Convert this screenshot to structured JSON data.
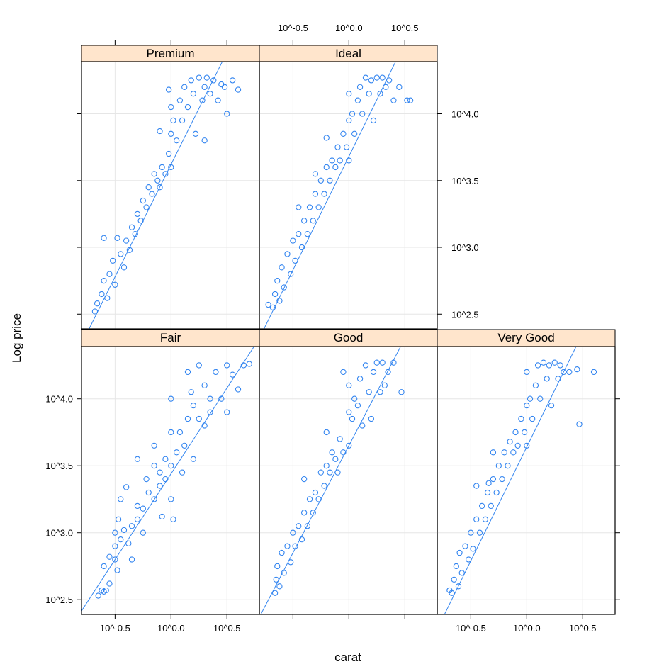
{
  "chart_data": {
    "type": "scatter",
    "xlabel": "carat",
    "ylabel": "Log price",
    "xscale": "log10",
    "yscale": "log10",
    "xlim": [
      -0.8,
      0.79
    ],
    "ylim": [
      2.39,
      4.39
    ],
    "x_ticks": [
      -0.5,
      0.0,
      0.5
    ],
    "x_tick_labels": [
      "10^-0.5",
      "10^0.0",
      "10^0.5"
    ],
    "y_ticks": [
      2.5,
      3.0,
      3.5,
      4.0
    ],
    "y_tick_labels": [
      "10^2.5",
      "10^3.0",
      "10^3.5",
      "10^4.0"
    ],
    "grid": true,
    "colors": {
      "points": "#3385f0",
      "line": "#3385f0",
      "strip": "#ffe5cc",
      "grid": "#e6e6e6"
    },
    "panels": [
      {
        "name": "Premium",
        "fit_line": {
          "intercept": 3.62,
          "slope": 1.68
        },
        "points": [
          [
            -0.68,
            2.52
          ],
          [
            -0.66,
            2.58
          ],
          [
            -0.62,
            2.65
          ],
          [
            -0.6,
            2.75
          ],
          [
            -0.57,
            2.62
          ],
          [
            -0.55,
            2.8
          ],
          [
            -0.52,
            2.9
          ],
          [
            -0.5,
            2.72
          ],
          [
            -0.48,
            3.07
          ],
          [
            -0.45,
            2.95
          ],
          [
            -0.42,
            2.85
          ],
          [
            -0.4,
            3.05
          ],
          [
            -0.37,
            2.98
          ],
          [
            -0.35,
            3.15
          ],
          [
            -0.32,
            3.1
          ],
          [
            -0.3,
            3.25
          ],
          [
            -0.27,
            3.2
          ],
          [
            -0.25,
            3.35
          ],
          [
            -0.22,
            3.3
          ],
          [
            -0.2,
            3.45
          ],
          [
            -0.17,
            3.4
          ],
          [
            -0.15,
            3.55
          ],
          [
            -0.12,
            3.5
          ],
          [
            -0.1,
            3.45
          ],
          [
            -0.08,
            3.6
          ],
          [
            -0.05,
            3.55
          ],
          [
            -0.02,
            3.7
          ],
          [
            0,
            3.6
          ],
          [
            0,
            3.85
          ],
          [
            0,
            4.05
          ],
          [
            0.02,
            3.95
          ],
          [
            0.05,
            3.8
          ],
          [
            0.08,
            4.1
          ],
          [
            0.1,
            3.95
          ],
          [
            0.12,
            4.2
          ],
          [
            0.15,
            4.05
          ],
          [
            0.18,
            4.25
          ],
          [
            0.2,
            4.15
          ],
          [
            0.22,
            3.85
          ],
          [
            0.25,
            4.27
          ],
          [
            0.28,
            4.1
          ],
          [
            0.3,
            4.2
          ],
          [
            0.3,
            3.8
          ],
          [
            0.32,
            4.27
          ],
          [
            0.35,
            4.15
          ],
          [
            0.38,
            4.25
          ],
          [
            0.42,
            4.1
          ],
          [
            0.45,
            4.22
          ],
          [
            0.48,
            4.2
          ],
          [
            0.5,
            4.0
          ],
          [
            0.6,
            4.18
          ],
          [
            0.55,
            4.25
          ],
          [
            -0.1,
            3.87
          ],
          [
            -0.02,
            4.18
          ],
          [
            -0.6,
            3.07
          ]
        ]
      },
      {
        "name": "Ideal",
        "fit_line": {
          "intercept": 3.68,
          "slope": 1.7
        },
        "points": [
          [
            -0.72,
            2.57
          ],
          [
            -0.68,
            2.55
          ],
          [
            -0.66,
            2.65
          ],
          [
            -0.64,
            2.75
          ],
          [
            -0.62,
            2.6
          ],
          [
            -0.6,
            2.85
          ],
          [
            -0.58,
            2.7
          ],
          [
            -0.55,
            2.95
          ],
          [
            -0.52,
            2.8
          ],
          [
            -0.5,
            3.05
          ],
          [
            -0.48,
            2.9
          ],
          [
            -0.45,
            3.1
          ],
          [
            -0.42,
            3.0
          ],
          [
            -0.4,
            3.2
          ],
          [
            -0.37,
            3.1
          ],
          [
            -0.35,
            3.3
          ],
          [
            -0.32,
            3.2
          ],
          [
            -0.3,
            3.4
          ],
          [
            -0.27,
            3.3
          ],
          [
            -0.25,
            3.5
          ],
          [
            -0.22,
            3.4
          ],
          [
            -0.2,
            3.6
          ],
          [
            -0.17,
            3.5
          ],
          [
            -0.15,
            3.65
          ],
          [
            -0.12,
            3.6
          ],
          [
            -0.1,
            3.75
          ],
          [
            -0.08,
            3.65
          ],
          [
            -0.05,
            3.85
          ],
          [
            -0.02,
            3.75
          ],
          [
            0,
            3.65
          ],
          [
            0,
            3.95
          ],
          [
            0,
            4.15
          ],
          [
            0.03,
            4.0
          ],
          [
            0.05,
            3.85
          ],
          [
            0.08,
            4.1
          ],
          [
            0.1,
            4.2
          ],
          [
            0.12,
            4.0
          ],
          [
            0.15,
            4.27
          ],
          [
            0.18,
            4.15
          ],
          [
            0.2,
            4.25
          ],
          [
            0.22,
            3.95
          ],
          [
            0.25,
            4.27
          ],
          [
            0.28,
            4.15
          ],
          [
            0.3,
            4.27
          ],
          [
            0.33,
            4.2
          ],
          [
            0.36,
            4.25
          ],
          [
            0.4,
            4.1
          ],
          [
            0.45,
            4.2
          ],
          [
            0.52,
            4.1
          ],
          [
            0.55,
            4.1
          ],
          [
            -0.45,
            3.3
          ],
          [
            -0.3,
            3.55
          ],
          [
            -0.2,
            3.82
          ]
        ]
      },
      {
        "name": "Fair",
        "fit_line": {
          "intercept": 3.44,
          "slope": 1.28
        },
        "points": [
          [
            -0.65,
            2.53
          ],
          [
            -0.62,
            2.57
          ],
          [
            -0.6,
            2.56
          ],
          [
            -0.58,
            2.57
          ],
          [
            -0.6,
            2.75
          ],
          [
            -0.55,
            2.62
          ],
          [
            -0.55,
            2.82
          ],
          [
            -0.5,
            2.8
          ],
          [
            -0.5,
            2.9
          ],
          [
            -0.5,
            3.0
          ],
          [
            -0.48,
            2.72
          ],
          [
            -0.45,
            2.95
          ],
          [
            -0.45,
            3.25
          ],
          [
            -0.47,
            3.1
          ],
          [
            -0.42,
            3.02
          ],
          [
            -0.4,
            3.34
          ],
          [
            -0.38,
            2.92
          ],
          [
            -0.35,
            3.05
          ],
          [
            -0.35,
            2.8
          ],
          [
            -0.3,
            3.1
          ],
          [
            -0.3,
            3.2
          ],
          [
            -0.3,
            3.55
          ],
          [
            -0.25,
            3.18
          ],
          [
            -0.25,
            3.0
          ],
          [
            -0.22,
            3.4
          ],
          [
            -0.2,
            3.3
          ],
          [
            -0.15,
            3.25
          ],
          [
            -0.15,
            3.5
          ],
          [
            -0.15,
            3.65
          ],
          [
            -0.1,
            3.45
          ],
          [
            -0.1,
            3.35
          ],
          [
            -0.08,
            3.12
          ],
          [
            -0.05,
            3.55
          ],
          [
            -0.05,
            3.4
          ],
          [
            0,
            3.5
          ],
          [
            0,
            3.75
          ],
          [
            0,
            4.0
          ],
          [
            0,
            3.25
          ],
          [
            0.02,
            3.1
          ],
          [
            0.05,
            3.6
          ],
          [
            0.08,
            3.75
          ],
          [
            0.1,
            3.45
          ],
          [
            0.12,
            3.65
          ],
          [
            0.15,
            3.85
          ],
          [
            0.15,
            4.2
          ],
          [
            0.18,
            4.05
          ],
          [
            0.2,
            3.55
          ],
          [
            0.2,
            3.95
          ],
          [
            0.25,
            4.25
          ],
          [
            0.25,
            3.85
          ],
          [
            0.3,
            3.8
          ],
          [
            0.3,
            4.1
          ],
          [
            0.35,
            4.0
          ],
          [
            0.35,
            3.9
          ],
          [
            0.4,
            4.2
          ],
          [
            0.45,
            4.0
          ],
          [
            0.5,
            4.25
          ],
          [
            0.5,
            3.9
          ],
          [
            0.55,
            4.18
          ],
          [
            0.6,
            4.07
          ],
          [
            0.65,
            4.25
          ],
          [
            0.7,
            4.26
          ]
        ]
      },
      {
        "name": "Good",
        "fit_line": {
          "intercept": 3.65,
          "slope": 1.6
        },
        "points": [
          [
            -0.66,
            2.55
          ],
          [
            -0.65,
            2.65
          ],
          [
            -0.64,
            2.75
          ],
          [
            -0.62,
            2.6
          ],
          [
            -0.6,
            2.85
          ],
          [
            -0.58,
            2.7
          ],
          [
            -0.55,
            2.9
          ],
          [
            -0.52,
            2.78
          ],
          [
            -0.5,
            3.0
          ],
          [
            -0.48,
            2.9
          ],
          [
            -0.45,
            3.05
          ],
          [
            -0.42,
            2.95
          ],
          [
            -0.4,
            3.15
          ],
          [
            -0.37,
            3.05
          ],
          [
            -0.35,
            3.25
          ],
          [
            -0.32,
            3.15
          ],
          [
            -0.3,
            3.3
          ],
          [
            -0.27,
            3.25
          ],
          [
            -0.25,
            3.45
          ],
          [
            -0.22,
            3.35
          ],
          [
            -0.2,
            3.5
          ],
          [
            -0.17,
            3.45
          ],
          [
            -0.15,
            3.6
          ],
          [
            -0.12,
            3.55
          ],
          [
            -0.1,
            3.45
          ],
          [
            -0.08,
            3.7
          ],
          [
            -0.05,
            3.6
          ],
          [
            0,
            3.65
          ],
          [
            0,
            3.9
          ],
          [
            0,
            4.1
          ],
          [
            0.03,
            3.85
          ],
          [
            0.05,
            4.0
          ],
          [
            0.08,
            3.95
          ],
          [
            0.1,
            4.15
          ],
          [
            0.12,
            3.8
          ],
          [
            0.15,
            4.25
          ],
          [
            0.18,
            4.05
          ],
          [
            0.2,
            3.85
          ],
          [
            0.22,
            4.2
          ],
          [
            0.25,
            4.27
          ],
          [
            0.28,
            4.05
          ],
          [
            0.3,
            4.27
          ],
          [
            0.32,
            4.1
          ],
          [
            0.35,
            4.2
          ],
          [
            0.4,
            4.27
          ],
          [
            0.47,
            4.05
          ],
          [
            -0.4,
            3.4
          ],
          [
            -0.2,
            3.75
          ],
          [
            -0.05,
            4.2
          ]
        ]
      },
      {
        "name": "Very Good",
        "fit_line": {
          "intercept": 3.64,
          "slope": 1.7
        },
        "points": [
          [
            -0.69,
            2.57
          ],
          [
            -0.67,
            2.55
          ],
          [
            -0.65,
            2.65
          ],
          [
            -0.63,
            2.75
          ],
          [
            -0.61,
            2.6
          ],
          [
            -0.6,
            2.85
          ],
          [
            -0.58,
            2.7
          ],
          [
            -0.55,
            2.9
          ],
          [
            -0.52,
            2.8
          ],
          [
            -0.5,
            3.0
          ],
          [
            -0.48,
            2.88
          ],
          [
            -0.45,
            3.1
          ],
          [
            -0.42,
            3.0
          ],
          [
            -0.4,
            3.2
          ],
          [
            -0.37,
            3.1
          ],
          [
            -0.35,
            3.3
          ],
          [
            -0.34,
            3.37
          ],
          [
            -0.32,
            3.2
          ],
          [
            -0.3,
            3.4
          ],
          [
            -0.27,
            3.3
          ],
          [
            -0.25,
            3.5
          ],
          [
            -0.22,
            3.4
          ],
          [
            -0.2,
            3.6
          ],
          [
            -0.17,
            3.5
          ],
          [
            -0.15,
            3.68
          ],
          [
            -0.12,
            3.6
          ],
          [
            -0.1,
            3.75
          ],
          [
            -0.08,
            3.65
          ],
          [
            -0.05,
            3.85
          ],
          [
            -0.02,
            3.75
          ],
          [
            0,
            3.65
          ],
          [
            0,
            3.95
          ],
          [
            0,
            4.2
          ],
          [
            0.03,
            4.0
          ],
          [
            0.05,
            3.85
          ],
          [
            0.08,
            4.1
          ],
          [
            0.1,
            4.25
          ],
          [
            0.12,
            4.0
          ],
          [
            0.15,
            4.27
          ],
          [
            0.18,
            4.15
          ],
          [
            0.2,
            4.25
          ],
          [
            0.22,
            3.95
          ],
          [
            0.25,
            4.27
          ],
          [
            0.28,
            4.15
          ],
          [
            0.3,
            4.25
          ],
          [
            0.33,
            4.2
          ],
          [
            0.38,
            4.2
          ],
          [
            0.45,
            4.22
          ],
          [
            0.47,
            3.81
          ],
          [
            0.6,
            4.2
          ],
          [
            -0.45,
            3.35
          ],
          [
            -0.3,
            3.6
          ]
        ]
      }
    ]
  }
}
